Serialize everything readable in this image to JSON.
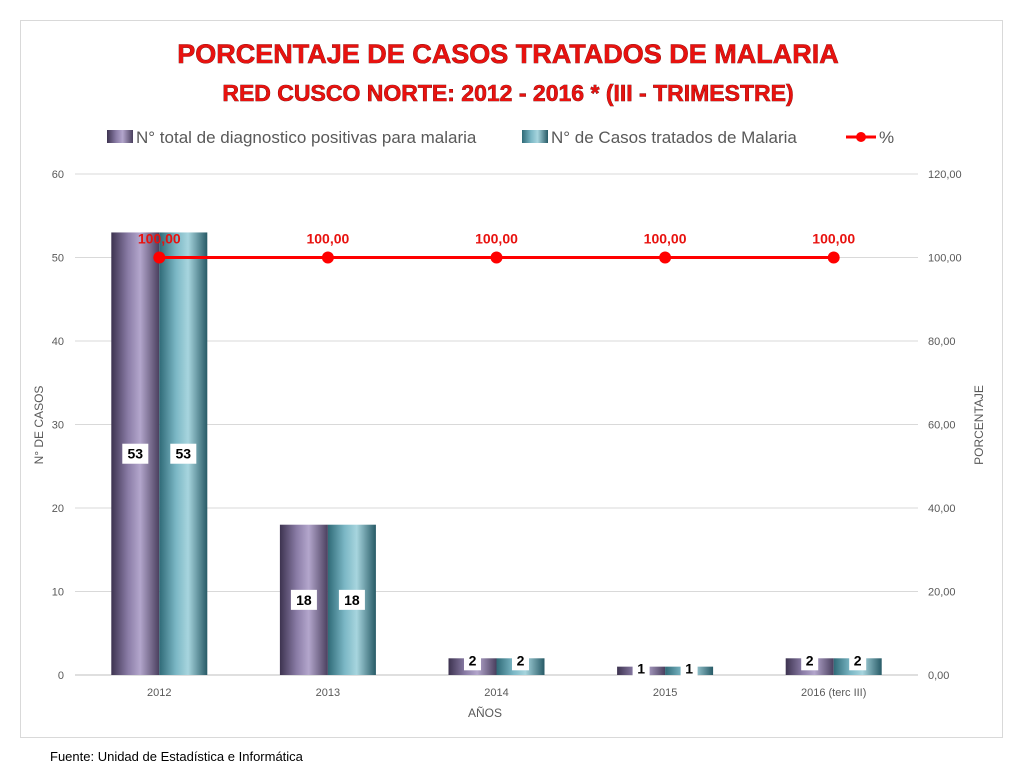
{
  "chart_data": {
    "type": "bar",
    "title": "PORCENTAJE DE CASOS TRATADOS DE MALARIA",
    "subtitle": "RED CUSCO NORTE: 2012 - 2016 * (III - TRIMESTRE)",
    "categories": [
      "2012",
      "2013",
      "2014",
      "2015",
      "2016 (terc III)"
    ],
    "series": [
      {
        "name": "N° total de diagnostico positivas para malaria",
        "type": "bar",
        "axis": "left",
        "values": [
          53,
          18,
          2,
          1,
          2
        ],
        "color": "#9c8fb5"
      },
      {
        "name": "N° de Casos tratados de Malaria",
        "type": "bar",
        "axis": "left",
        "values": [
          53,
          18,
          2,
          1,
          2
        ],
        "color": "#7fb9c6"
      },
      {
        "name": "%",
        "type": "line",
        "axis": "right",
        "values": [
          100.0,
          100.0,
          100.0,
          100.0,
          100.0
        ],
        "labels": [
          "100,00",
          "100,00",
          "100,00",
          "100,00",
          "100,00"
        ],
        "color": "#ff0000"
      }
    ],
    "xlabel": "AÑOS",
    "ylabel": "N° DE CASOS",
    "y2label": "PORCENTAJE",
    "ylim": [
      0,
      60
    ],
    "y2lim": [
      0,
      120
    ],
    "yticks": [
      "0",
      "10",
      "20",
      "30",
      "40",
      "50",
      "60"
    ],
    "y2ticks": [
      "0,00",
      "20,00",
      "40,00",
      "60,00",
      "80,00",
      "100,00",
      "120,00"
    ],
    "grid": true,
    "legend_position": "top"
  },
  "footer": {
    "source": "Fuente: Unidad de Estadística e Informática"
  }
}
